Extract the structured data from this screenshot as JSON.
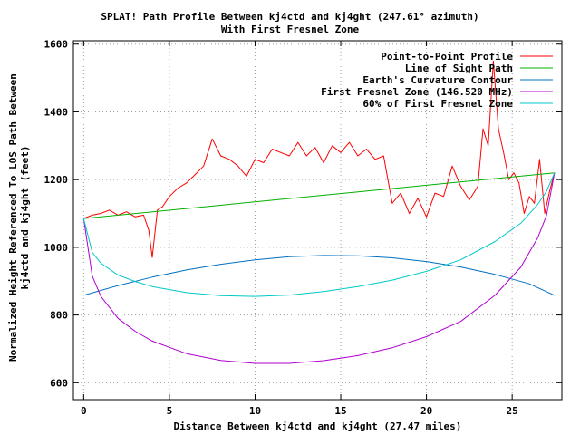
{
  "chart_data": {
    "type": "line",
    "title": "SPLAT! Path Profile Between kj4ctd and kj4ght (247.61° azimuth)",
    "subtitle": "With First Fresnel Zone",
    "xlabel": "Distance Between kj4ctd and kj4ght (27.47 miles)",
    "ylabel_lines": [
      "Normalized Height Referenced To LOS Path Between",
      "kj4ctd and kj4ght (feet)"
    ],
    "xlim": [
      -0.6,
      27.9
    ],
    "ylim": [
      550,
      1610
    ],
    "x_ticks": [
      0,
      5,
      10,
      15,
      20,
      25
    ],
    "y_ticks": [
      600,
      800,
      1000,
      1200,
      1400,
      1600
    ],
    "grid": true,
    "legend_position": "top-right",
    "series": [
      {
        "name": "Point-to-Point Profile",
        "color": "#ff0000",
        "x": [
          0,
          0.5,
          1,
          1.5,
          2,
          2.5,
          3,
          3.5,
          3.8,
          4.0,
          4.3,
          4.6,
          5,
          5.5,
          6,
          6.5,
          7,
          7.5,
          8,
          8.5,
          9,
          9.5,
          10,
          10.5,
          11,
          11.5,
          12,
          12.5,
          13,
          13.5,
          14,
          14.5,
          15,
          15.5,
          16,
          16.5,
          17,
          17.5,
          18,
          18.5,
          19,
          19.5,
          20,
          20.5,
          21,
          21.5,
          22,
          22.5,
          23,
          23.3,
          23.6,
          23.9,
          24.2,
          24.5,
          24.8,
          25.1,
          25.4,
          25.7,
          26.0,
          26.3,
          26.6,
          26.9,
          27.2,
          27.47
        ],
        "y": [
          1085,
          1095,
          1100,
          1110,
          1095,
          1105,
          1090,
          1095,
          1050,
          970,
          1110,
          1120,
          1150,
          1175,
          1190,
          1215,
          1240,
          1320,
          1270,
          1260,
          1240,
          1210,
          1260,
          1250,
          1290,
          1280,
          1270,
          1310,
          1270,
          1295,
          1250,
          1300,
          1280,
          1310,
          1270,
          1290,
          1260,
          1270,
          1130,
          1160,
          1100,
          1145,
          1090,
          1160,
          1150,
          1240,
          1180,
          1140,
          1180,
          1350,
          1300,
          1550,
          1350,
          1280,
          1200,
          1220,
          1190,
          1100,
          1150,
          1130,
          1260,
          1100,
          1170,
          1220
        ]
      },
      {
        "name": "Line of Sight Path",
        "color": "#00b000",
        "x": [
          0,
          27.47
        ],
        "y": [
          1085,
          1220
        ]
      },
      {
        "name": "Earth's Curvature Contour",
        "color": "#0070c0",
        "x": [
          0,
          2,
          4,
          6,
          8,
          10,
          12,
          14,
          16,
          18,
          20,
          22,
          24,
          26,
          27.47
        ],
        "y": [
          858,
          887,
          912,
          933,
          950,
          963,
          972,
          976,
          975,
          969,
          958,
          942,
          920,
          892,
          858
        ]
      },
      {
        "name": "First Fresnel Zone (146.520 MHz)",
        "color": "#b000d0",
        "x": [
          0,
          0.5,
          1,
          2,
          3,
          4,
          6,
          8,
          10,
          12,
          14,
          16,
          18,
          20,
          22,
          24,
          25.5,
          26.5,
          27,
          27.47
        ],
        "y": [
          1085,
          915,
          855,
          790,
          752,
          723,
          686,
          666,
          657,
          657,
          665,
          680,
          703,
          736,
          781,
          858,
          941,
          1029,
          1094,
          1220
        ]
      },
      {
        "name": "60% of First Fresnel Zone",
        "color": "#00c8c8",
        "x": [
          0,
          0.5,
          1,
          2,
          3,
          4,
          6,
          8,
          10,
          12,
          14,
          16,
          18,
          20,
          22,
          24,
          25.5,
          26.5,
          27,
          27.47
        ],
        "y": [
          1085,
          985,
          953,
          918,
          899,
          884,
          866,
          857,
          855,
          859,
          869,
          884,
          903,
          929,
          963,
          1017,
          1071,
          1127,
          1165,
          1220
        ]
      }
    ]
  }
}
